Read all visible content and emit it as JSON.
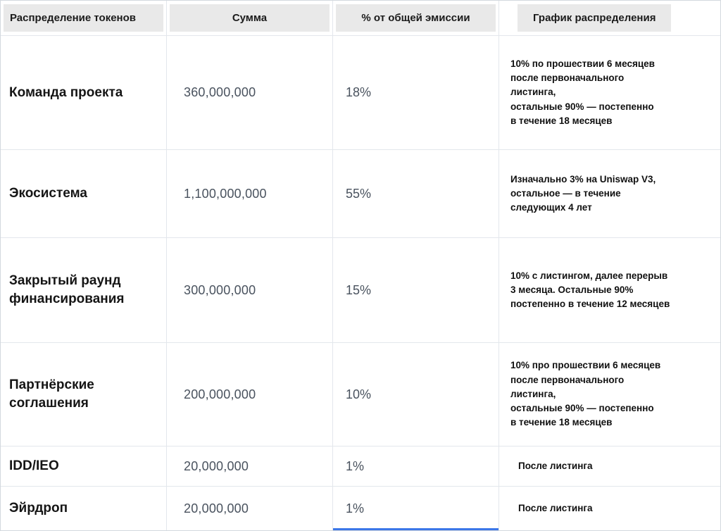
{
  "colors": {
    "header_background": "#e9e9e9",
    "grid_border": "#e3e7ec",
    "number_text": "#49525e",
    "bottom_accent_line": "#3b76e8"
  },
  "table": {
    "headers": [
      "Распределение токенов",
      "Сумма",
      "% от общей эмиссии",
      "График распределения"
    ],
    "rows": [
      {
        "name": "Команда проекта",
        "amount": "360,000,000",
        "percent": "18%",
        "schedule": "10% по прошествии 6 месяцев\nпосле первоначального\nлистинга,\nостальные 90% — постепенно\nв течение 18 месяцев"
      },
      {
        "name": "Экосистема",
        "amount": "1,100,000,000",
        "percent": "55%",
        "schedule": "Изначально 3% на Uniswap V3,\nостальное — в течение\nследующих 4 лет"
      },
      {
        "name": "Закрытый раунд финансирования",
        "amount": "300,000,000",
        "percent": "15%",
        "schedule": "10% с листингом, далее перерыв\n3 месяца. Остальные 90%\nпостепенно в течение 12 месяцев"
      },
      {
        "name": "Партнёрские соглашения",
        "amount": "200,000,000",
        "percent": "10%",
        "schedule": "10% про прошествии 6 месяцев\nпосле первоначального\nлистинга,\nостальные 90% — постепенно\nв течение 18 месяцев"
      },
      {
        "name": "IDD/IEO",
        "amount": "20,000,000",
        "percent": "1%",
        "schedule": "После листинга"
      },
      {
        "name": "Эйрдроп",
        "amount": "20,000,000",
        "percent": "1%",
        "schedule": "После листинга"
      }
    ]
  },
  "chart_data": {
    "type": "table",
    "title": "Распределение токенов",
    "columns": [
      "Распределение токенов",
      "Сумма",
      "% от общей эмиссии",
      "График распределения"
    ],
    "categories": [
      "Команда проекта",
      "Экосистема",
      "Закрытый раунд финансирования",
      "Партнёрские соглашения",
      "IDD/IEO",
      "Эйрдроп"
    ],
    "series": [
      {
        "name": "Сумма",
        "values": [
          360000000,
          1100000000,
          300000000,
          200000000,
          20000000,
          20000000
        ]
      },
      {
        "name": "% от общей эмиссии",
        "values": [
          18,
          55,
          15,
          10,
          1,
          1
        ]
      }
    ],
    "annotations": [
      "10% по прошествии 6 месяцев после первоначального листинга, остальные 90% — постепенно в течение 18 месяцев",
      "Изначально 3% на Uniswap V3, остальное — в течение следующих 4 лет",
      "10% с листингом, далее перерыв 3 месяца. Остальные 90% постепенно в течение 12 месяцев",
      "10% про прошествии 6 месяцев после первоначального листинга, остальные 90% — постепенно в течение 18 месяцев",
      "После листинга",
      "После листинга"
    ]
  }
}
